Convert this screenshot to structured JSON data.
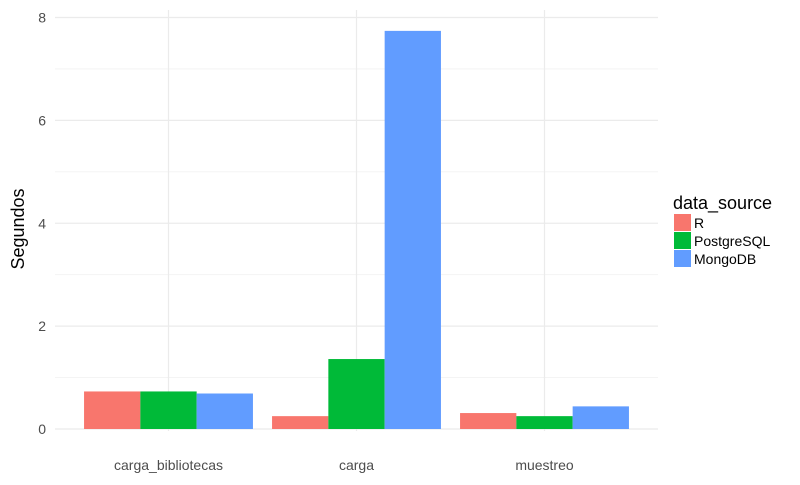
{
  "chart_data": {
    "type": "bar",
    "categories": [
      "carga_bibliotecas",
      "carga",
      "muestreo"
    ],
    "series": [
      {
        "name": "R",
        "values": [
          0.73,
          0.25,
          0.31
        ],
        "color": "#F8766D"
      },
      {
        "name": "PostgreSQL",
        "values": [
          0.73,
          1.36,
          0.25
        ],
        "color": "#00BA38"
      },
      {
        "name": "MongoDB",
        "values": [
          0.69,
          7.74,
          0.44
        ],
        "color": "#619CFF"
      }
    ],
    "title": "",
    "xlabel": "",
    "ylabel": "Segundos",
    "ylim": [
      0,
      8
    ],
    "yticks": [
      0,
      2,
      4,
      6,
      8
    ],
    "ytick_labels": [
      "0",
      "2",
      "4",
      "6",
      "8"
    ],
    "grid": true,
    "legend": {
      "title": "data_source",
      "placement": "right"
    }
  }
}
